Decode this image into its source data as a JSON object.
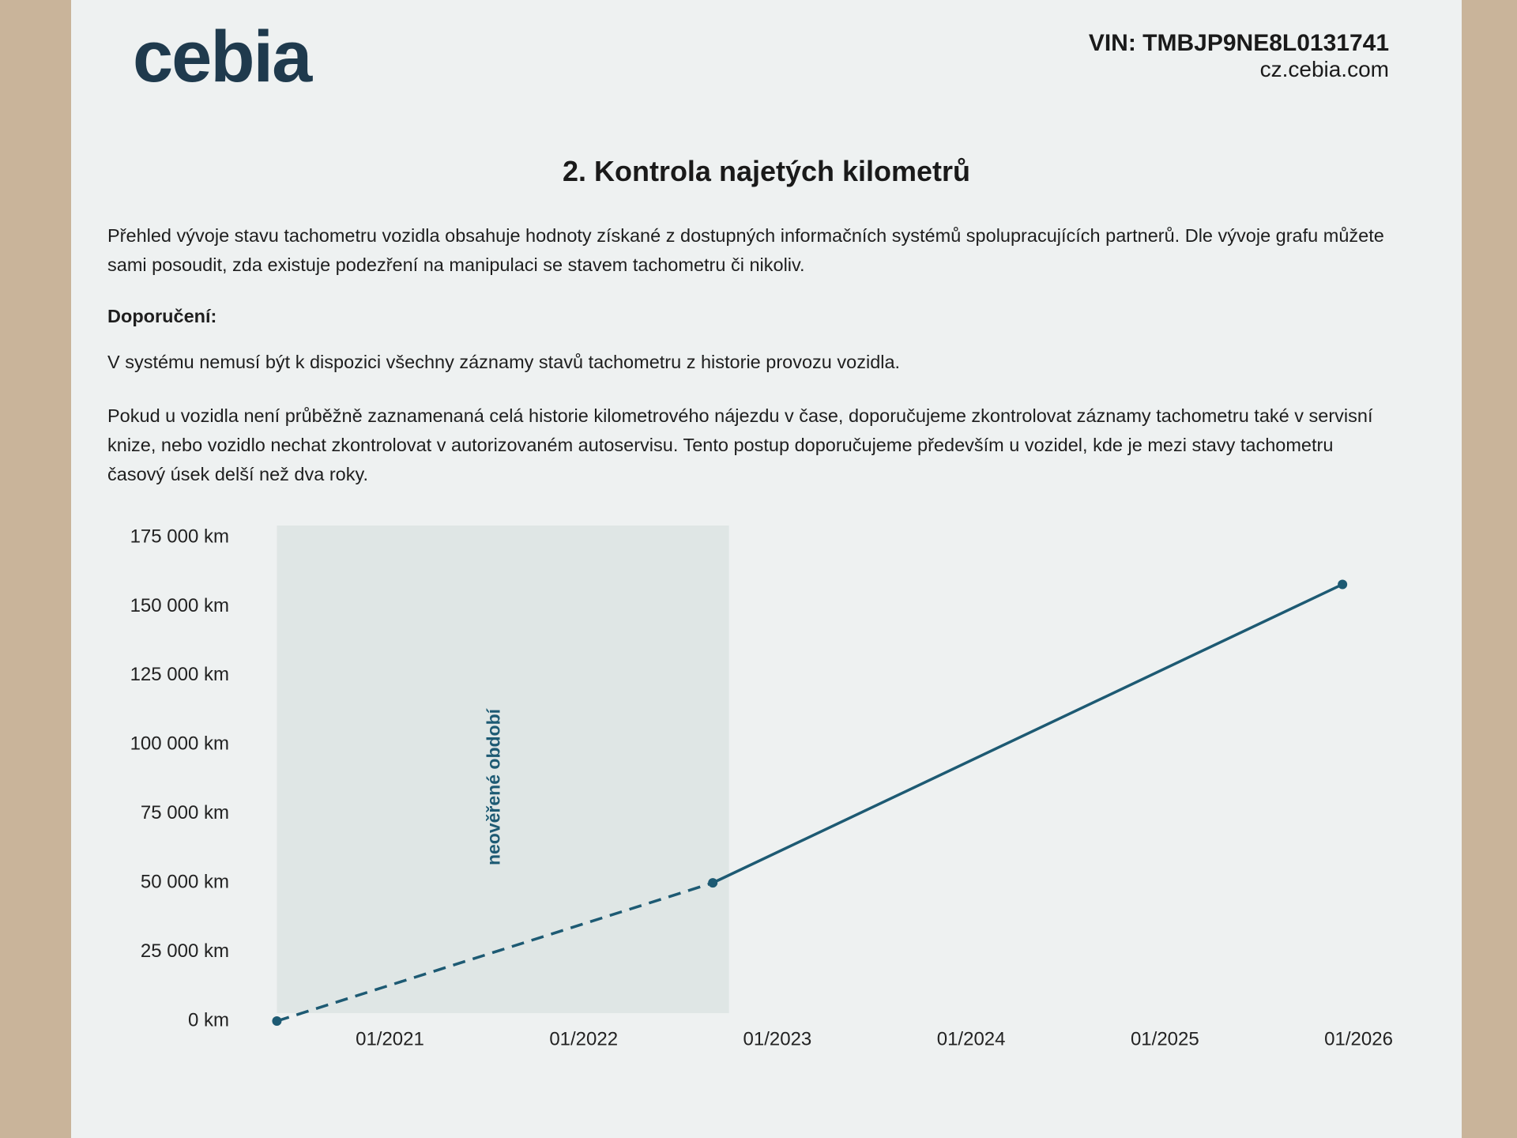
{
  "header": {
    "logo": "cebia",
    "vin": "VIN: TMBJP9NE8L0131741",
    "url": "cz.cebia.com"
  },
  "title": "2. Kontrola najetých kilometrů",
  "paragraphs": [
    "Přehled vývoje stavu tachometru vozidla obsahuje hodnoty získané z dostupných informačních systémů spolupracujících partnerů. Dle vývoje grafu můžete sami posoudit, zda existuje podezření na manipulaci se stavem tachometru či nikoliv.",
    "Doporučení:",
    "V systému nemusí být k dispozici všechny záznamy stavů tachometru z historie provozu vozidla.",
    "Pokud u vozidla není průběžně zaznamenaná celá historie kilometrového nájezdu v čase, doporučujeme zkontrolovat záznamy tachometru také v servisní knize, nebo vozidlo nechat zkontrolovat v autorizovaném autoservisu. Tento postup doporučujeme především u vozidel, kde je mezi stavy tachometru časový úsek delší než dva roky."
  ],
  "chart_data": {
    "type": "line",
    "x": [
      "2020-06",
      "2022-09",
      "2025-12"
    ],
    "series": [
      {
        "color": "#1d5a73",
        "values": [
          0,
          50000,
          158000
        ]
      }
    ],
    "segment_styles": [
      "dashed",
      "solid"
    ],
    "xlim": [
      "2020-05",
      "2026-02"
    ],
    "xticks": [
      {
        "value": "2021-01",
        "label": "01/2021"
      },
      {
        "value": "2022-01",
        "label": "01/2022"
      },
      {
        "value": "2023-01",
        "label": "01/2023"
      },
      {
        "value": "2024-01",
        "label": "01/2024"
      },
      {
        "value": "2025-01",
        "label": "01/2025"
      },
      {
        "value": "2026-01",
        "label": "01/2026"
      }
    ],
    "ylim": [
      0,
      175000
    ],
    "yticks": [
      {
        "value": 0,
        "label": "0 km"
      },
      {
        "value": 25000,
        "label": "25 000 km"
      },
      {
        "value": 50000,
        "label": "50 000 km"
      },
      {
        "value": 75000,
        "label": "75 000 km"
      },
      {
        "value": 100000,
        "label": "100 000 km"
      },
      {
        "value": 125000,
        "label": "125 000 km"
      },
      {
        "value": 150000,
        "label": "150 000 km"
      },
      {
        "value": 175000,
        "label": "175 000 km"
      }
    ],
    "shaded_range": [
      "2020-06",
      "2022-10"
    ],
    "shaded_label": "neověřené období"
  }
}
